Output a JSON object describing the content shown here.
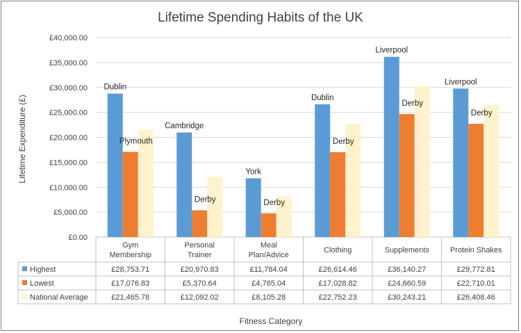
{
  "chart_data": {
    "type": "bar",
    "title": "Lifetime Spending Habits of the UK",
    "xlabel": "Fitness Category",
    "ylabel": "Lifetime Expenditure (£)",
    "ylim": [
      0,
      40000
    ],
    "y_ticks": [
      "£0.00",
      "£5,000.00",
      "£10,000.00",
      "£15,000.00",
      "£20,000.00",
      "£25,000.00",
      "£30,000.00",
      "£35,000.00",
      "£40,000.00"
    ],
    "grid": true,
    "legend_position": "data-table",
    "categories": [
      [
        "Gym",
        "Membership"
      ],
      [
        "Personal",
        "Trainer"
      ],
      [
        "Meal",
        "Plan/Advice"
      ],
      [
        "Clothing"
      ],
      [
        "Supplements"
      ],
      [
        "Protein Shakes"
      ]
    ],
    "series": [
      {
        "name": "Highest",
        "color": "#5b9bd5",
        "values": [
          28753.71,
          20970.83,
          11784.04,
          26614.46,
          36140.27,
          29772.81
        ],
        "table_values": [
          "£28,753.71",
          "£20,970.83",
          "£11,784.04",
          "£26,614.46",
          "£36,140.27",
          "£29,772.81"
        ],
        "point_labels": [
          "Dublin",
          "Cambridge",
          "York",
          "Dublin",
          "Liverpool",
          "Liverpool"
        ]
      },
      {
        "name": "Lowest",
        "color": "#ed7d31",
        "values": [
          17076.83,
          5370.64,
          4765.04,
          17028.82,
          24660.59,
          22710.01
        ],
        "table_values": [
          "£17,076.83",
          "£5,370.64",
          "£4,765.04",
          "£17,028.82",
          "£24,660.59",
          "£22,710.01"
        ],
        "point_labels": [
          "Plymouth",
          "Derby",
          "Derby",
          "Derby",
          "Derby",
          "Derby"
        ]
      },
      {
        "name": "National Average",
        "color": "#fff2cc",
        "values": [
          21465.78,
          12092.02,
          8105.28,
          22752.23,
          30243.21,
          26408.46
        ],
        "table_values": [
          "£21,465.78",
          "£12,092.02",
          "£8,105.28",
          "£22,752.23",
          "£30,243.21",
          "£26,408.46"
        ]
      }
    ]
  }
}
